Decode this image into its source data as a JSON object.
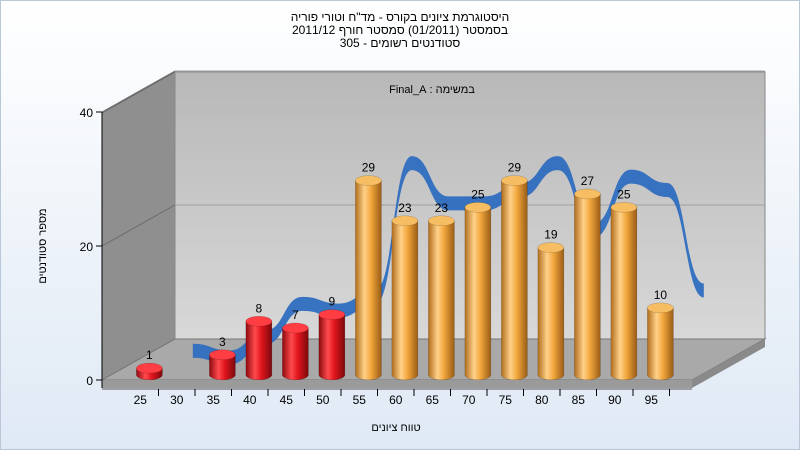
{
  "title": {
    "line1": "היסטוגרמת ציונים בקורס - מד\"ח וטורי פוריה",
    "line2": "בסמסטר  (01/2011)  סמסטר חורף 2011/12",
    "line3": "סטודנטים רשומים - 305"
  },
  "chart_data": {
    "type": "bar",
    "title": "היסטוגרמת ציונים בקורס - מד\"ח וטורי פוריה",
    "annotation": "במשימה : Final_A",
    "xlabel": "טווח ציונים",
    "ylabel": "מספר סטודנטים",
    "ylim": [
      0,
      40
    ],
    "yticks": [
      "0",
      "20",
      "40"
    ],
    "categories": [
      "25",
      "30",
      "35",
      "40",
      "45",
      "50",
      "55",
      "60",
      "65",
      "70",
      "75",
      "80",
      "85",
      "90",
      "95"
    ],
    "bars": [
      {
        "x": "25",
        "value": 1,
        "label": "1",
        "color": "red"
      },
      {
        "x": "35",
        "value": 3,
        "label": "3",
        "color": "red"
      },
      {
        "x": "40",
        "value": 8,
        "label": "8",
        "color": "red"
      },
      {
        "x": "45",
        "value": 7,
        "label": "7",
        "color": "red"
      },
      {
        "x": "50",
        "value": 9,
        "label": "9",
        "color": "red"
      },
      {
        "x": "55",
        "value": 29,
        "label": "29",
        "color": "orange"
      },
      {
        "x": "60",
        "value": 23,
        "label": "23",
        "color": "orange"
      },
      {
        "x": "65",
        "value": 23,
        "label": "23",
        "color": "orange"
      },
      {
        "x": "70",
        "value": 25,
        "label": "25",
        "color": "orange"
      },
      {
        "x": "75",
        "value": 29,
        "label": "29",
        "color": "orange"
      },
      {
        "x": "80",
        "value": 19,
        "label": "19",
        "color": "orange"
      },
      {
        "x": "85",
        "value": 27,
        "label": "27",
        "color": "orange"
      },
      {
        "x": "90",
        "value": 25,
        "label": "25",
        "color": "orange"
      },
      {
        "x": "95",
        "value": 10,
        "label": "10",
        "color": "orange"
      }
    ],
    "trend": {
      "type": "area-ribbon",
      "color": "#2f6ec0"
    },
    "colors": {
      "red": "#e0141c",
      "orange": "#f2a73c",
      "trend": "#2f6ec0",
      "wall": "#c8c8c8",
      "side_wall": "#8c8c8c"
    },
    "grid": true,
    "legend": "none"
  }
}
